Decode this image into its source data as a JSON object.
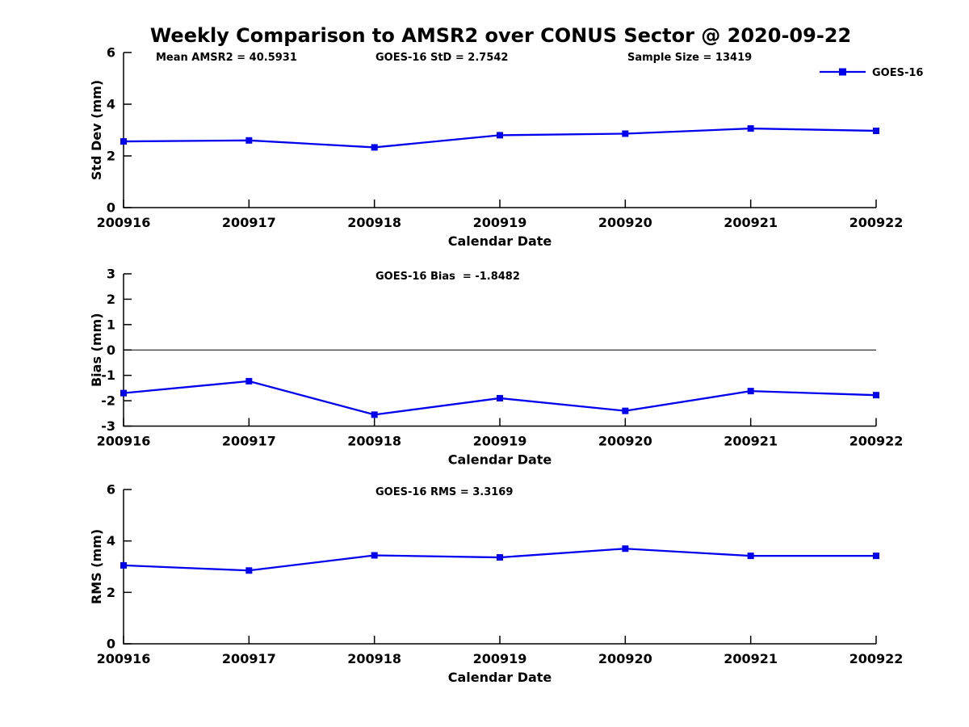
{
  "title": "Weekly Comparison to AMSR2 over CONUS Sector @ 2020-09-22",
  "colors": {
    "series": "#0000ee",
    "axis": "#000000",
    "text": "#000000",
    "background": "#ffffff"
  },
  "chart_data": [
    {
      "type": "line",
      "title": "",
      "annotations": [
        "Mean AMSR2 = 40.5931",
        "GOES-16 StD = 2.7542",
        "Sample Size = 13419"
      ],
      "x": [
        "200916",
        "200917",
        "200918",
        "200919",
        "200920",
        "200921",
        "200922"
      ],
      "series": [
        {
          "name": "GOES-16",
          "marker": "square",
          "values": [
            2.56,
            2.6,
            2.33,
            2.8,
            2.86,
            3.06,
            2.97
          ]
        }
      ],
      "xlabel": "Calendar Date",
      "ylabel": "Std Dev (mm)",
      "ylim": [
        0,
        6
      ],
      "yticks": [
        0,
        2,
        4,
        6
      ],
      "grid": false,
      "zero_line": false,
      "legend_position": "top-right"
    },
    {
      "type": "line",
      "title": "",
      "annotations": [
        "GOES-16 Bias  = -1.8482"
      ],
      "x": [
        "200916",
        "200917",
        "200918",
        "200919",
        "200920",
        "200921",
        "200922"
      ],
      "series": [
        {
          "name": "GOES-16",
          "marker": "square",
          "values": [
            -1.7,
            -1.23,
            -2.55,
            -1.9,
            -2.4,
            -1.62,
            -1.78
          ]
        }
      ],
      "xlabel": "Calendar Date",
      "ylabel": "Bias (mm)",
      "ylim": [
        -3,
        3
      ],
      "yticks": [
        -3,
        -2,
        -1,
        0,
        1,
        2,
        3
      ],
      "grid": false,
      "zero_line": true,
      "legend_position": null
    },
    {
      "type": "line",
      "title": "",
      "annotations": [
        "GOES-16 RMS = 3.3169"
      ],
      "x": [
        "200916",
        "200917",
        "200918",
        "200919",
        "200920",
        "200921",
        "200922"
      ],
      "series": [
        {
          "name": "GOES-16",
          "marker": "square",
          "values": [
            3.05,
            2.85,
            3.44,
            3.36,
            3.7,
            3.42,
            3.42
          ]
        }
      ],
      "xlabel": "Calendar Date",
      "ylabel": "RMS (mm)",
      "ylim": [
        0,
        6
      ],
      "yticks": [
        0,
        2,
        4,
        6
      ],
      "grid": false,
      "zero_line": false,
      "legend_position": null
    }
  ]
}
